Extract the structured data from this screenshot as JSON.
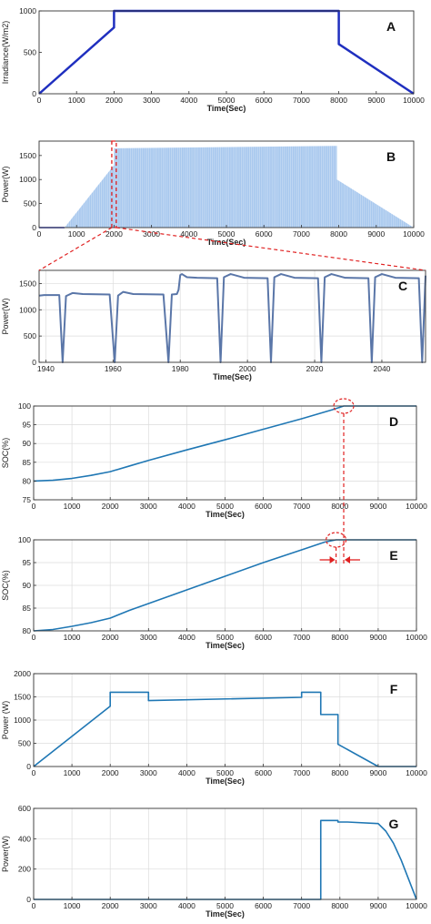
{
  "colors": {
    "dark_blue": "#1f2fbf",
    "light_blue": "#a8c8ee",
    "slate": "#5a76a8",
    "mid_blue": "#1f77b4",
    "red": "#e02020",
    "grid": "#dcdcdc"
  },
  "chart_data": [
    {
      "id": "A",
      "panel_label": "A",
      "type": "line",
      "xlabel": "Time(Sec)",
      "ylabel": "Irradiance(W/m2)",
      "xlim": [
        0,
        10000
      ],
      "ylim": [
        0,
        1000
      ],
      "xticks": [
        0,
        1000,
        2000,
        3000,
        4000,
        5000,
        6000,
        7000,
        8000,
        9000,
        10000
      ],
      "yticks": [
        0,
        500,
        1000
      ],
      "grid": false,
      "series": [
        {
          "x": [
            0,
            2000,
            2000,
            8000,
            8000,
            10000
          ],
          "y": [
            0,
            800,
            1000,
            1000,
            600,
            0
          ],
          "color": "#1f2fbf"
        }
      ]
    },
    {
      "id": "B",
      "panel_label": "B",
      "type": "area",
      "xlabel": "Time(Sec)",
      "ylabel": "Power(W)",
      "xlim": [
        0,
        10000
      ],
      "ylim": [
        0,
        1800
      ],
      "xticks": [
        0,
        1000,
        2000,
        3000,
        4000,
        5000,
        6000,
        7000,
        8000,
        9000,
        10000
      ],
      "yticks": [
        0,
        500,
        1000,
        1500
      ],
      "grid": false,
      "series": [
        {
          "x": [
            0,
            680
          ],
          "y": [
            0,
            0
          ],
          "color": "#1f2fbf"
        },
        {
          "x": [
            680,
            2000,
            2000,
            7950,
            7950,
            10000
          ],
          "y": [
            0,
            1300,
            1650,
            1700,
            1000,
            0
          ],
          "color": "#a8c8ee",
          "fill": true
        }
      ],
      "zoom_window": [
        1940,
        2060
      ]
    },
    {
      "id": "C",
      "panel_label": "C",
      "type": "line",
      "xlabel": "Time(Sec)",
      "ylabel": "Power(W)",
      "xlim": [
        1938,
        2053
      ],
      "ylim": [
        0,
        1750
      ],
      "xticks": [
        1940,
        1960,
        1980,
        2000,
        2020,
        2040
      ],
      "yticks": [
        0,
        500,
        1000,
        1500
      ],
      "grid": true,
      "series": [
        {
          "x": [
            1938,
            1939.5,
            1940.5,
            1944,
            1945,
            1946,
            1948,
            1951,
            1959,
            1960.5,
            1961.5,
            1963,
            1966,
            1975,
            1976.5,
            1977.5,
            1979,
            1979.5,
            1980,
            1980.5,
            1982,
            1985,
            1991,
            1992,
            1993,
            1995,
            1999,
            2006,
            2007,
            2008,
            2010,
            2014,
            2021,
            2022,
            2023,
            2025,
            2029,
            2036,
            2037,
            2038,
            2040,
            2044,
            2051,
            2052,
            2053
          ],
          "y": [
            1270,
            1280,
            1280,
            1280,
            0,
            1260,
            1320,
            1300,
            1290,
            0,
            1270,
            1340,
            1300,
            1290,
            0,
            1290,
            1300,
            1380,
            1660,
            1680,
            1620,
            1610,
            1600,
            0,
            1620,
            1680,
            1610,
            1600,
            0,
            1620,
            1680,
            1610,
            1600,
            0,
            1620,
            1680,
            1610,
            1600,
            0,
            1620,
            1680,
            1610,
            1600,
            0,
            1650
          ],
          "color": "#5a76a8"
        }
      ]
    },
    {
      "id": "D",
      "panel_label": "D",
      "type": "line",
      "xlabel": "Time(Sec)",
      "ylabel": "SOC(%)",
      "xlim": [
        0,
        10000
      ],
      "ylim": [
        75,
        100
      ],
      "xticks": [
        0,
        1000,
        2000,
        3000,
        4000,
        5000,
        6000,
        7000,
        8000,
        9000,
        10000
      ],
      "yticks": [
        75,
        80,
        85,
        90,
        95,
        100
      ],
      "grid": true,
      "series": [
        {
          "x": [
            0,
            500,
            1000,
            1500,
            2000,
            2500,
            3000,
            4000,
            5000,
            6000,
            7000,
            7800,
            8100,
            9000,
            10000
          ],
          "y": [
            80,
            80.2,
            80.7,
            81.5,
            82.5,
            84,
            85.5,
            88.3,
            91,
            93.8,
            96.6,
            99,
            100,
            100,
            100
          ],
          "color": "#1f77b4"
        }
      ],
      "marker_x": 8100
    },
    {
      "id": "E",
      "panel_label": "E",
      "type": "line",
      "xlabel": "Time(Sec)",
      "ylabel": "SOC(%)",
      "xlim": [
        0,
        10000
      ],
      "ylim": [
        80,
        100
      ],
      "xticks": [
        0,
        1000,
        2000,
        3000,
        4000,
        5000,
        6000,
        7000,
        8000,
        9000,
        10000
      ],
      "yticks": [
        80,
        85,
        90,
        95,
        100
      ],
      "grid": true,
      "series": [
        {
          "x": [
            0,
            500,
            1000,
            1500,
            2000,
            2500,
            3000,
            4000,
            5000,
            6000,
            7000,
            7600,
            7900,
            8000,
            9000,
            10000
          ],
          "y": [
            80,
            80.3,
            81,
            81.8,
            82.8,
            84.5,
            86,
            89,
            92,
            95,
            97.8,
            99.5,
            100,
            100,
            100,
            100
          ],
          "color": "#1f77b4"
        }
      ],
      "marker_x": 7900
    },
    {
      "id": "F",
      "panel_label": "F",
      "type": "line",
      "xlabel": "Time(Sec)",
      "ylabel": "Power (W)",
      "xlim": [
        0,
        10000
      ],
      "ylim": [
        0,
        2000
      ],
      "xticks": [
        0,
        1000,
        2000,
        3000,
        4000,
        5000,
        6000,
        7000,
        8000,
        9000,
        10000
      ],
      "yticks": [
        0,
        500,
        1000,
        1500,
        2000
      ],
      "grid": true,
      "series": [
        {
          "x": [
            0,
            2000,
            2000,
            3000,
            3000,
            7000,
            7000,
            7500,
            7500,
            7950,
            7950,
            9000,
            10000
          ],
          "y": [
            0,
            1300,
            1600,
            1600,
            1420,
            1490,
            1600,
            1600,
            1120,
            1120,
            480,
            0,
            0
          ],
          "color": "#1f77b4"
        }
      ]
    },
    {
      "id": "G",
      "panel_label": "G",
      "type": "line",
      "xlabel": "Time(Sec)",
      "ylabel": "Power(W)",
      "xlim": [
        0,
        10000
      ],
      "ylim": [
        0,
        600
      ],
      "xticks": [
        0,
        1000,
        2000,
        3000,
        4000,
        5000,
        6000,
        7000,
        8000,
        9000,
        10000
      ],
      "yticks": [
        0,
        200,
        400,
        600
      ],
      "grid": true,
      "series": [
        {
          "x": [
            0,
            7500,
            7500,
            7950,
            7950,
            8200,
            9000,
            9200,
            9400,
            9600,
            9800,
            10000
          ],
          "y": [
            0,
            0,
            520,
            520,
            510,
            510,
            500,
            450,
            370,
            260,
            130,
            0
          ],
          "color": "#1f77b4"
        }
      ]
    }
  ]
}
